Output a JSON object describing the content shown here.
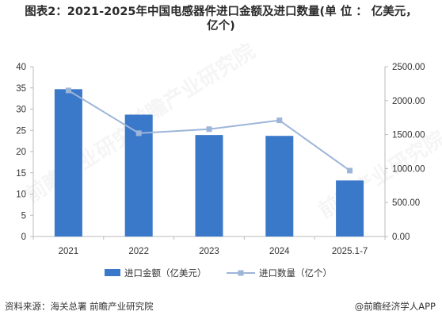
{
  "title_line1": "图表2：2021-2025年中国电感器件进口金额及进口数量(单 位 ： 亿美元，",
  "title_line2": "亿个)",
  "footer": {
    "source": "资料来源：海关总署 前瞻产业研究院",
    "brand": "@前瞻经济学人APP"
  },
  "colors": {
    "bar": "#3a78c9",
    "line": "#9db5d9",
    "axis": "#bbbbbb"
  },
  "chart_data": {
    "type": "bar",
    "categories": [
      "2021",
      "2022",
      "2023",
      "2024",
      "2025.1-7"
    ],
    "series": [
      {
        "name": "进口金额（亿美元）",
        "type": "bar",
        "axis": "left",
        "values": [
          34.7,
          28.7,
          23.9,
          23.7,
          13.2
        ]
      },
      {
        "name": "进口数量（亿个）",
        "type": "line",
        "axis": "right",
        "values": [
          2150,
          1520,
          1580,
          1710,
          970
        ]
      }
    ],
    "y_left": {
      "ylim": [
        0,
        40
      ],
      "ticks": [
        "0",
        "5",
        "10",
        "15",
        "20",
        "25",
        "30",
        "35",
        "40"
      ]
    },
    "y_right": {
      "ylim": [
        0,
        2500
      ],
      "ticks": [
        "0.00",
        "500.00",
        "1000.00",
        "1500.00",
        "2000.00",
        "2500.00"
      ]
    },
    "legend_position": "bottom",
    "grid": false
  }
}
